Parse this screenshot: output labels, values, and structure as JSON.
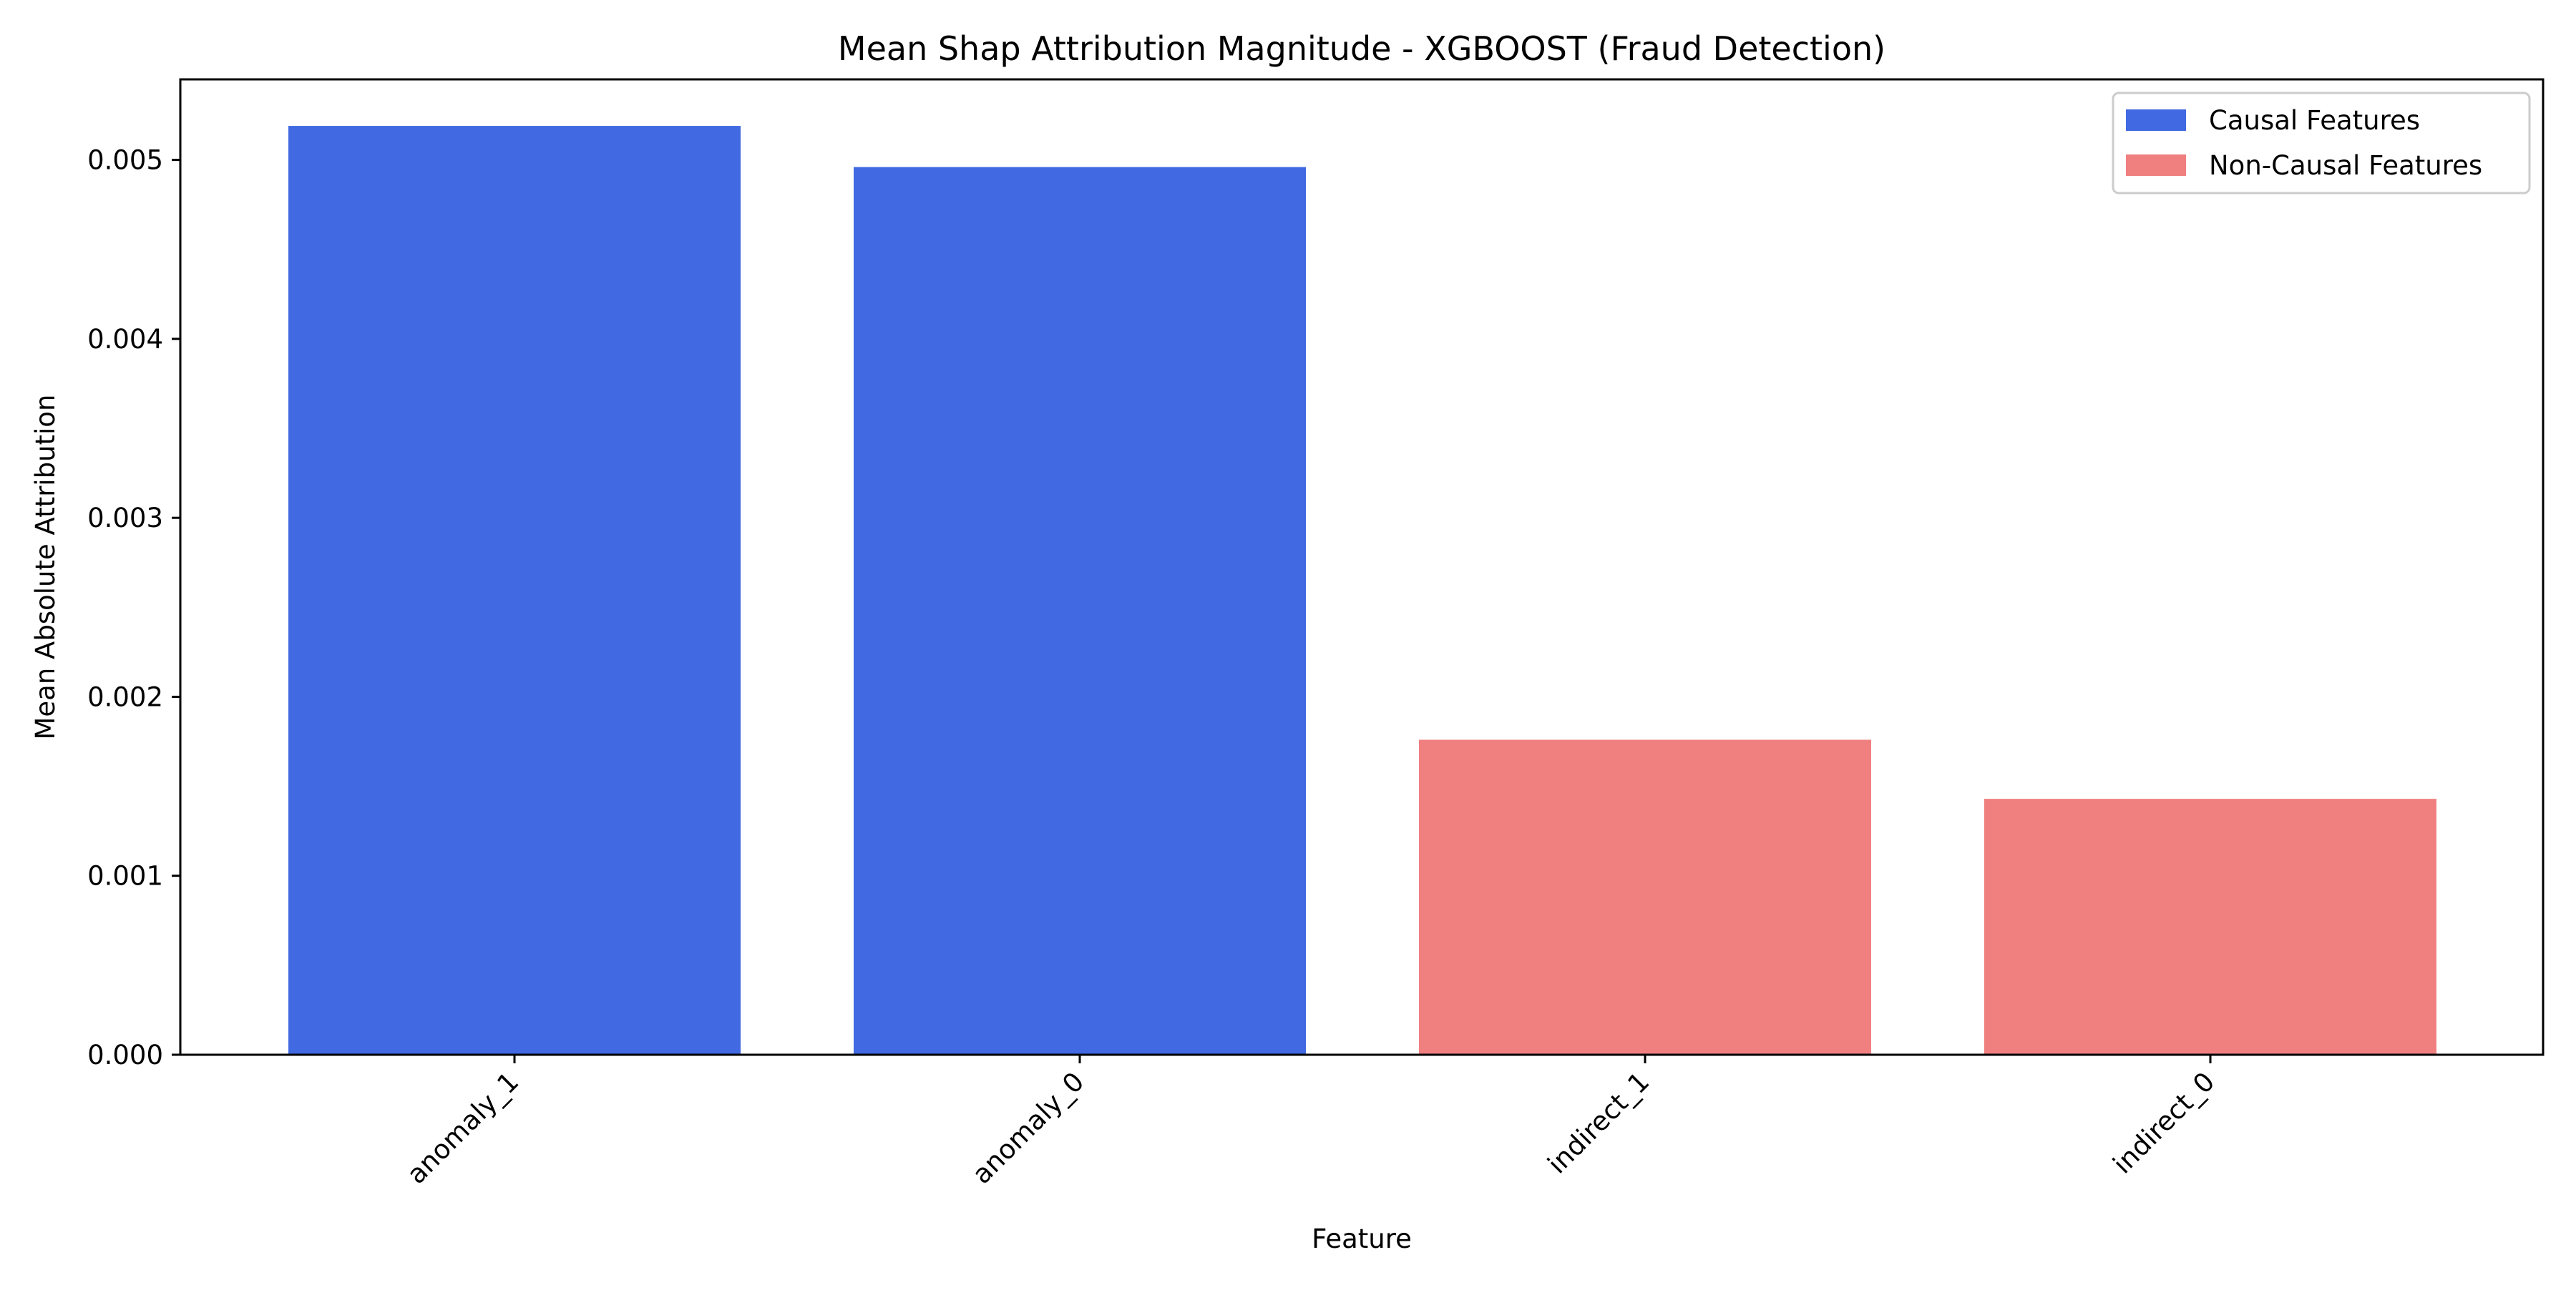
{
  "chart_data": {
    "type": "bar",
    "title": "Mean Shap Attribution Magnitude - XGBOOST (Fraud Detection)",
    "xlabel": "Feature",
    "ylabel": "Mean Absolute Attribution",
    "categories": [
      "anomaly_1",
      "anomaly_0",
      "indirect_1",
      "indirect_0"
    ],
    "values": [
      0.00519,
      0.00496,
      0.00176,
      0.00143
    ],
    "groups": [
      "Causal Features",
      "Causal Features",
      "Non-Causal Features",
      "Non-Causal Features"
    ],
    "ylim": [
      0,
      0.00545
    ],
    "yticks": [
      0,
      0.001,
      0.002,
      0.003,
      0.004,
      0.005
    ],
    "ytick_labels": [
      "0.000",
      "0.001",
      "0.002",
      "0.003",
      "0.004",
      "0.005"
    ],
    "legend": {
      "placement": "top-right",
      "entries": [
        {
          "label": "Causal Features",
          "color": "#4169e1"
        },
        {
          "label": "Non-Causal Features",
          "color": "#f08080"
        }
      ]
    },
    "grid": false
  }
}
